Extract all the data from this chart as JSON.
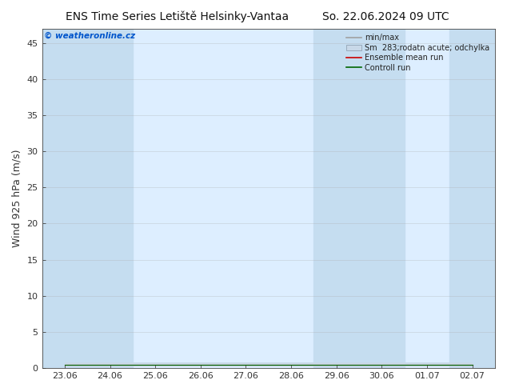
{
  "title": "ENS Time Series Letiště Helsinky-Vantaa",
  "subtitle": "So. 22.06.2024 09 UTC",
  "ylabel": "Wind 925 hPa (m/s)",
  "watermark": "© weatheronline.cz",
  "x_labels": [
    "23.06",
    "24.06",
    "25.06",
    "26.06",
    "27.06",
    "28.06",
    "29.06",
    "30.06",
    "01.07",
    "02.07"
  ],
  "x_ticks": [
    0,
    1,
    2,
    3,
    4,
    5,
    6,
    7,
    8,
    9
  ],
  "ylim": [
    0,
    47
  ],
  "yticks": [
    0,
    5,
    10,
    15,
    20,
    25,
    30,
    35,
    40,
    45
  ],
  "background_color": "#ffffff",
  "plot_bg_color": "#ddeeff",
  "shade_columns": [
    0,
    1,
    6,
    7,
    9
  ],
  "shade_color": "#c5ddf0",
  "legend_entries": [
    "min/max",
    "Sm  283;rodatn acute; odchylka",
    "Ensemble mean run",
    "Controll run"
  ],
  "minmax_color": "#a0a0a0",
  "std_color": "#c8d8e8",
  "ensemble_mean_color": "#cc0000",
  "control_run_color": "#006600",
  "title_fontsize": 10,
  "tick_fontsize": 8,
  "ylabel_fontsize": 9,
  "watermark_color": "#0055cc",
  "mean_vals": [
    0.5,
    0.5,
    0.5,
    0.5,
    0.5,
    0.5,
    0.5,
    0.5,
    0.5,
    0.5
  ]
}
